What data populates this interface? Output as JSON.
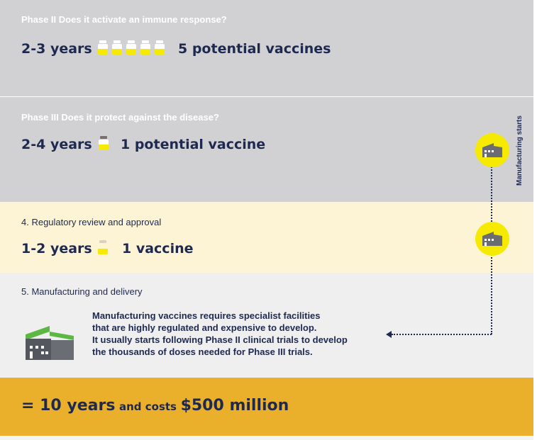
{
  "phase2": {
    "heading": "Phase II Does it activate an immune response?",
    "duration": "2-3 years",
    "vaccines": "5 potential vaccines",
    "vial_icon": "vial-icon",
    "vial_count": 5
  },
  "phase3": {
    "heading": "Phase III Does it protect against the disease?",
    "duration": "2-4 years",
    "vaccines": "1 potential vaccine",
    "vial_icon": "vial-icon"
  },
  "regulatory": {
    "heading": "4. Regulatory review and approval",
    "duration": "1-2 years",
    "vaccines": "1 vaccine"
  },
  "manufacturing": {
    "heading": "5. Manufacturing and delivery",
    "description_lines": [
      "Manufacturing vaccines requires specialist facilities",
      "that are highly regulated and expensive to develop.",
      "It usually starts following Phase II clinical trials to develop",
      "the thousands of doses needed for Phase III trials."
    ],
    "vertical_label": "Manufacturing starts",
    "factory_icon": "factory-icon"
  },
  "total": {
    "prefix": "= 10 years",
    "middle": "and costs",
    "amount": "$500 million"
  },
  "colors": {
    "navy": "#1e2950",
    "grey_band": "#d1d1d3",
    "cream_band": "#fdf4d6",
    "light_band": "#efeff0",
    "gold_band": "#ebb02b",
    "yellow": "#f6ea00"
  }
}
